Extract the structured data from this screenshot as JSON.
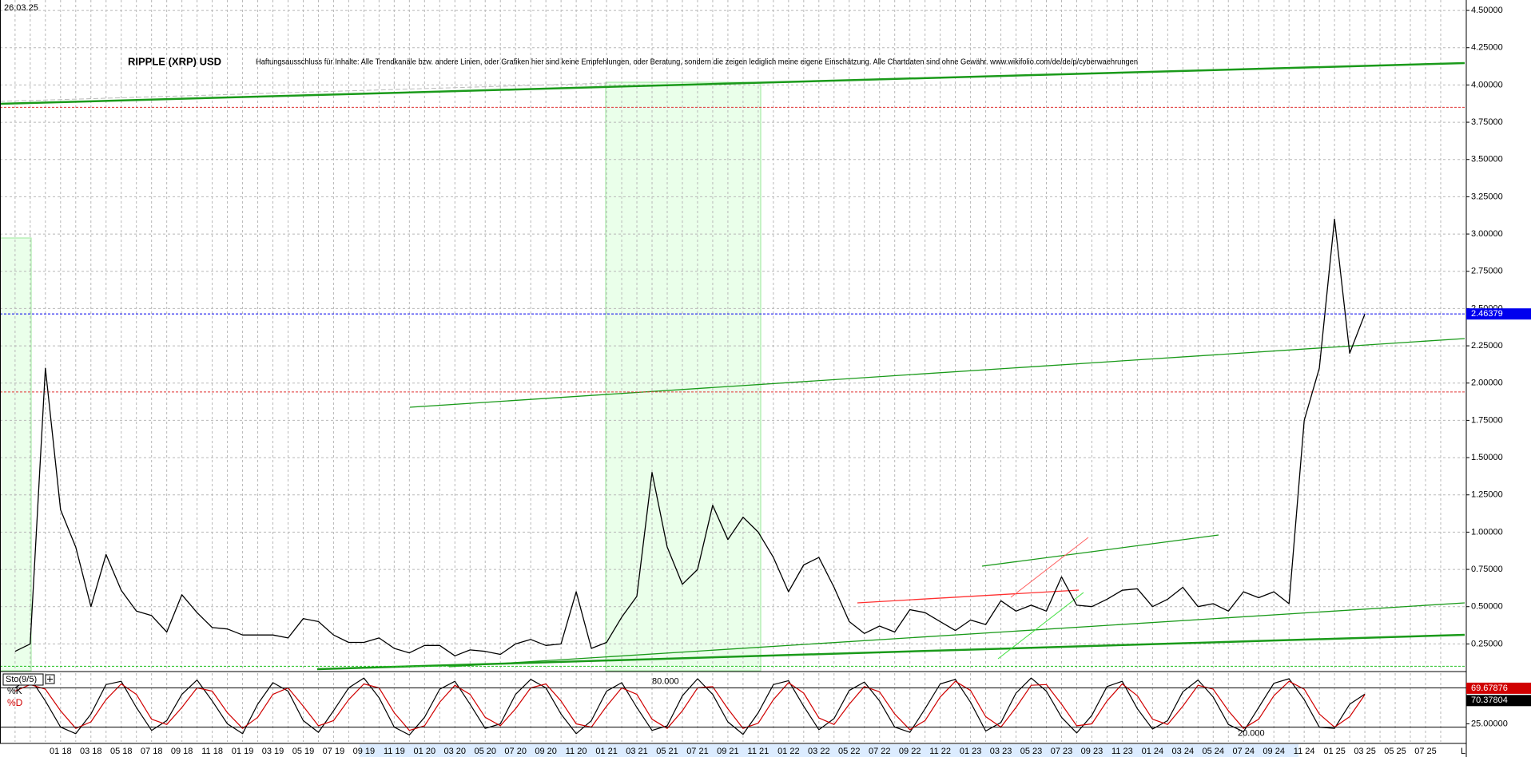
{
  "chart_data": [
    {
      "type": "line",
      "date": "26.03.25",
      "title": "RIPPLE (XRP) USD",
      "subtitle": "Haftungsausschluss für Inhalte: Alle Trendkanäle bzw. andere Linien, oder Grafiken hier sind keine Empfehlungen, oder Beratung, sondern die zeigen lediglich meine eigene Einschätzung. Alle Chartdaten sind ohne Gewähr.  www.wikifolio.com/de/de/p/cyberwaehrungen",
      "categories": [
        null,
        null,
        null,
        "01 18",
        null,
        "03 18",
        null,
        "05 18",
        null,
        "07 18",
        null,
        "09 18",
        null,
        "11 18",
        null,
        "01 19",
        null,
        "03 19",
        null,
        "05 19",
        null,
        "07 19",
        null,
        "09 19",
        null,
        "11 19",
        null,
        "01 20",
        null,
        "03 20",
        null,
        "05 20",
        null,
        "07 20",
        null,
        "09 20",
        null,
        "11 20",
        null,
        "01 21",
        null,
        "03 21",
        null,
        "05 21",
        null,
        "07 21",
        null,
        "09 21",
        null,
        "11 21",
        null,
        "01 22",
        null,
        "03 22",
        null,
        "05 22",
        null,
        "07 22",
        null,
        "09 22",
        null,
        "11 22",
        null,
        "01 23",
        null,
        "03 23",
        null,
        "05 23",
        null,
        "07 23",
        null,
        "09 23",
        null,
        "11 23",
        null,
        "01 24",
        null,
        "03 24",
        null,
        "05 24",
        null,
        "07 24",
        null,
        "09 24",
        null,
        "11 24",
        null,
        "01 25",
        null,
        "03 25",
        null,
        "05 25",
        null,
        "07 25",
        null
      ],
      "values": [
        0.2,
        0.25,
        2.1,
        1.15,
        0.9,
        0.5,
        0.85,
        0.61,
        0.47,
        0.44,
        0.33,
        0.58,
        0.46,
        0.36,
        0.35,
        0.31,
        0.31,
        0.31,
        0.29,
        0.42,
        0.4,
        0.31,
        0.26,
        0.26,
        0.29,
        0.22,
        0.19,
        0.24,
        0.24,
        0.17,
        0.21,
        0.2,
        0.18,
        0.25,
        0.28,
        0.24,
        0.25,
        0.6,
        0.22,
        0.26,
        0.43,
        0.57,
        1.4,
        0.9,
        0.65,
        0.75,
        1.18,
        0.95,
        1.1,
        1.0,
        0.83,
        0.6,
        0.78,
        0.83,
        0.63,
        0.4,
        0.32,
        0.37,
        0.33,
        0.48,
        0.46,
        0.4,
        0.34,
        0.41,
        0.38,
        0.54,
        0.47,
        0.51,
        0.47,
        0.7,
        0.51,
        0.5,
        0.55,
        0.61,
        0.62,
        0.5,
        0.55,
        0.63,
        0.5,
        0.52,
        0.47,
        0.6,
        0.56,
        0.6,
        0.52,
        1.75,
        2.1,
        3.1,
        2.2,
        2.46379,
        null,
        null,
        null,
        null,
        null
      ],
      "color": "#000000",
      "price_color": "#0000ee",
      "ylim": [
        0.07,
        4.57
      ],
      "yticks": [
        {
          "value": 0.25,
          "label": "0.25000"
        },
        {
          "value": 0.5,
          "label": "0.50000"
        },
        {
          "value": 0.75,
          "label": "0.75000"
        },
        {
          "value": 1,
          "label": "1.00000"
        },
        {
          "value": 1.25,
          "label": "1.25000"
        },
        {
          "value": 1.5,
          "label": "1.50000"
        },
        {
          "value": 1.75,
          "label": "1.75000"
        },
        {
          "value": 2,
          "label": "2.00000"
        },
        {
          "value": 2.25,
          "label": "2.25000"
        },
        {
          "value": 2.5,
          "label": "2.50000"
        },
        {
          "value": 2.75,
          "label": "2.75000"
        },
        {
          "value": 3,
          "label": "3.00000"
        },
        {
          "value": 3.25,
          "label": "3.25000"
        },
        {
          "value": 3.5,
          "label": "3.50000"
        },
        {
          "value": 3.75,
          "label": "3.75000"
        },
        {
          "value": 4,
          "label": "4.00000"
        },
        {
          "value": 4.25,
          "label": "4.25000"
        },
        {
          "value": 4.5,
          "label": "4.50000"
        }
      ],
      "grid": true,
      "hlines": [
        {
          "value": 3.85,
          "color": "#e03030"
        },
        {
          "value": 1.94,
          "color": "#e03030"
        },
        {
          "value": 0.1,
          "color": "#20c020"
        }
      ],
      "axis_end_label": "L"
    },
    {
      "type": "line",
      "title": "Sto(9/5)",
      "series": [
        {
          "name": "%K",
          "color": "#000000",
          "values": [
            80,
            95,
            60,
            20,
            10,
            40,
            85,
            90,
            50,
            15,
            30,
            70,
            92,
            60,
            25,
            10,
            55,
            88,
            75,
            30,
            12,
            45,
            80,
            95,
            65,
            20,
            8,
            35,
            78,
            90,
            55,
            18,
            25,
            70,
            93,
            80,
            40,
            10,
            30,
            75,
            88,
            50,
            15,
            22,
            68,
            94,
            70,
            28,
            9,
            42,
            85,
            91,
            52,
            16,
            33,
            76,
            89,
            60,
            20,
            12,
            48,
            86,
            93,
            58,
            14,
            27,
            72,
            95,
            75,
            35,
            11,
            38,
            82,
            90,
            48,
            17,
            30,
            74,
            92,
            66,
            24,
            13,
            50,
            87,
            94,
            62,
            20,
            18,
            55,
            70.37804,
            null,
            null,
            null,
            null,
            null
          ]
        },
        {
          "name": "%D",
          "color": "#d00000",
          "values": [
            75,
            85,
            78,
            45,
            18,
            28,
            62,
            86,
            70,
            32,
            24,
            50,
            80,
            75,
            42,
            18,
            35,
            70,
            80,
            52,
            22,
            30,
            62,
            86,
            80,
            42,
            15,
            22,
            58,
            84,
            70,
            35,
            22,
            48,
            80,
            86,
            60,
            25,
            20,
            52,
            80,
            70,
            32,
            18,
            45,
            80,
            82,
            48,
            18,
            26,
            62,
            88,
            72,
            34,
            24,
            55,
            82,
            74,
            40,
            16,
            30,
            66,
            90,
            76,
            36,
            20,
            50,
            84,
            85,
            55,
            22,
            25,
            60,
            86,
            68,
            32,
            24,
            52,
            84,
            78,
            45,
            18,
            32,
            68,
            90,
            78,
            40,
            20,
            36,
            69.67876,
            null,
            null,
            null,
            null,
            null
          ]
        }
      ],
      "ylim": [
        -2.5,
        102.5
      ],
      "yticks": [
        {
          "value": 25,
          "label": "25.00000"
        }
      ],
      "levels": [
        {
          "value": 80,
          "label": "80.000"
        },
        {
          "value": 20,
          "label": "20.000"
        }
      ]
    }
  ]
}
